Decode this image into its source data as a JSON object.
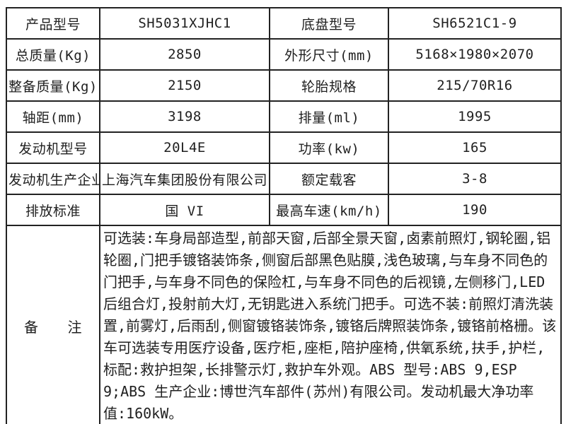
{
  "table": {
    "rows": [
      {
        "label_left": "产品型号",
        "value_left": "SH5031XJHC1",
        "label_right": "底盘型号",
        "value_right": "SH6521C1-9"
      },
      {
        "label_left": "总质量(Kg)",
        "value_left": "2850",
        "label_right": "外形尺寸(mm)",
        "value_right": "5168×1980×2070"
      },
      {
        "label_left": "整备质量(Kg)",
        "value_left": "2150",
        "label_right": "轮胎规格",
        "value_right": "215/70R16"
      },
      {
        "label_left": "轴距(mm)",
        "value_left": "3198",
        "label_right": "排量(ml)",
        "value_right": "1995"
      },
      {
        "label_left": "发动机型号",
        "value_left": "20L4E",
        "label_right": "功率(kw)",
        "value_right": "165"
      },
      {
        "label_left": "发动机生产企业",
        "value_left": "上海汽车集团股份有限公司",
        "label_right": "额定载客",
        "value_right": "3-8"
      },
      {
        "label_left": "排放标准",
        "value_left": "国 VI",
        "label_right": "最高车速(km/h)",
        "value_right": "190"
      }
    ],
    "remark": {
      "label": "备　　注",
      "text": "可选装:车身局部造型,前部天窗,后部全景天窗,卤素前照灯,钢轮圈,铝轮圈,门把手镀铬装饰条,侧窗后部黑色贴膜,浅色玻璃,与车身不同色的门把手,与车身不同色的保险杠,与车身不同色的后视镜,左侧移门,LED 后组合灯,投射前大灯,无钥匙进入系统门把手。可选不装:前照灯清洗装置,前雾灯,后雨刮,侧窗镀铬装饰条,镀铬后牌照装饰条,镀铬前格栅。该车可选装专用医疗设备,医疗柜,座柜,陪护座椅,供氧系统,扶手,护栏,标配:救护担架,长排警示灯,救护车外观。ABS 型号:ABS 9,ESP 9;ABS 生产企业:博世汽车部件(苏州)有限公司。发动机最大净功率值:160kW。"
    }
  },
  "colors": {
    "border": "#222222",
    "text": "#1f1f1f",
    "background": "#ffffff"
  }
}
